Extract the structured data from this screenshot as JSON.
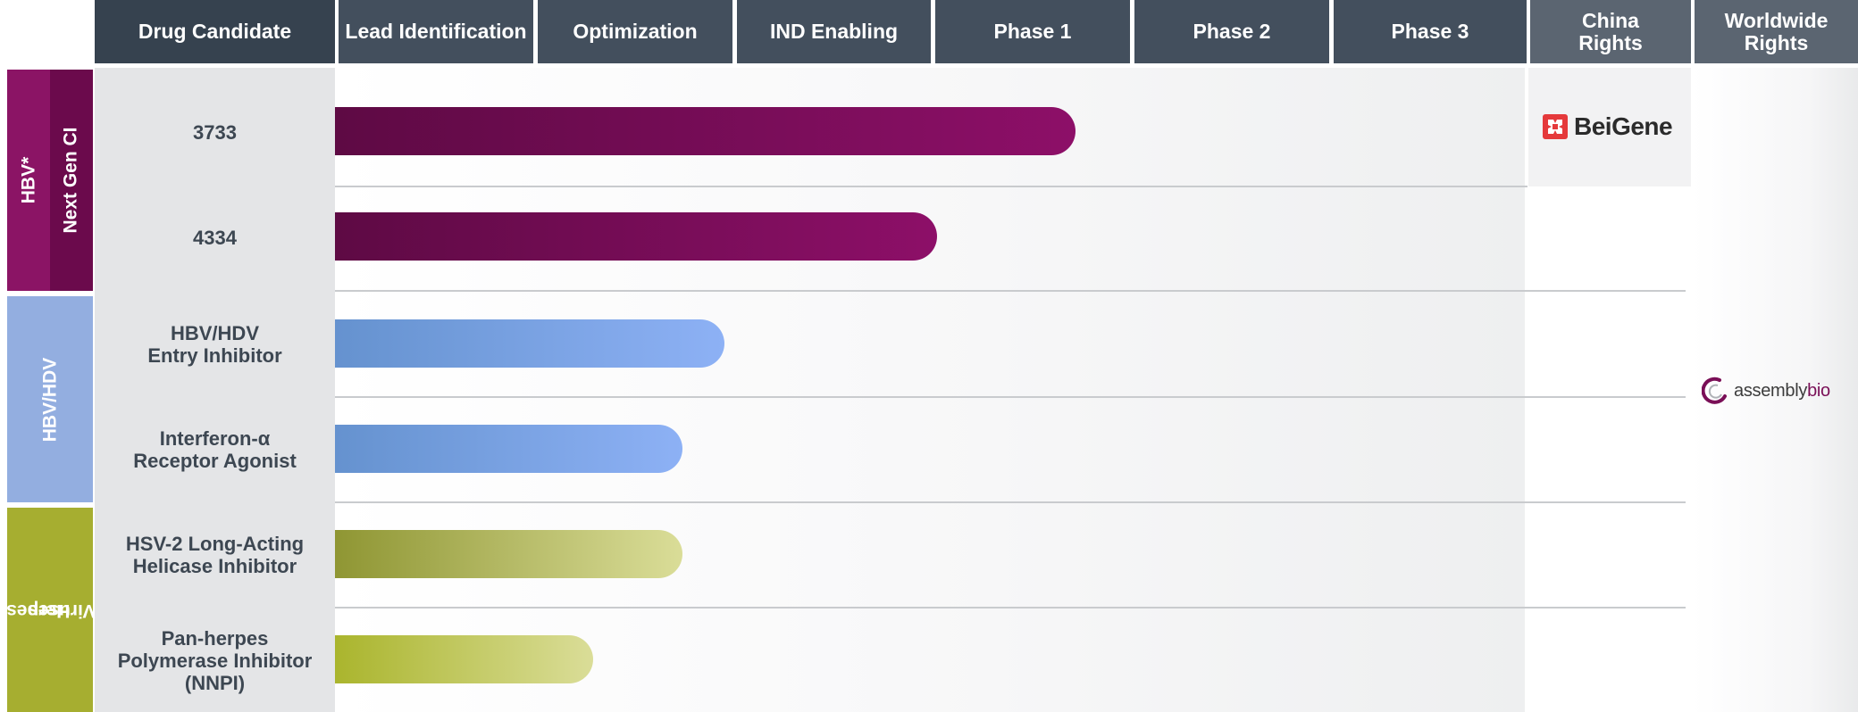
{
  "chart_data": {
    "type": "bar",
    "orientation": "horizontal",
    "stages": [
      "Lead Identification",
      "Optimization",
      "IND Enabling",
      "Phase 1",
      "Phase 2",
      "Phase 3"
    ],
    "headers": {
      "candidate": "Drug Candidate",
      "stages": [
        "Lead Identification",
        "Optimization",
        "IND Enabling",
        "Phase 1",
        "Phase 2",
        "Phase 3"
      ],
      "china_rights": [
        "China",
        "Rights"
      ],
      "worldwide_rights": [
        "Worldwide",
        "Rights"
      ]
    },
    "categories": [
      {
        "label": "HBV*",
        "color": "#8b1465"
      },
      {
        "label": "Next Gen CI",
        "color": "#6b0a4c"
      },
      {
        "label": "HBV/HDV",
        "color": "#93aee0"
      },
      {
        "label": "Herpes",
        "label2": "Viruses",
        "color": "#a6ae30"
      }
    ],
    "candidates": [
      {
        "lines": [
          "3733"
        ],
        "progress": 3.73,
        "start_color": "#5e0a44",
        "end_color": "#8d0f68"
      },
      {
        "lines": [
          "4334"
        ],
        "progress": 3.03,
        "start_color": "#5e0a44",
        "end_color": "#8d0f68"
      },
      {
        "lines": [
          "HBV/HDV",
          "Entry Inhibitor"
        ],
        "progress": 1.96,
        "start_color": "#6592cf",
        "end_color": "#8db1f5"
      },
      {
        "lines": [
          "Interferon-α",
          "Receptor Agonist"
        ],
        "progress": 1.75,
        "start_color": "#6592cf",
        "end_color": "#8db1f5"
      },
      {
        "lines": [
          "HSV-2 Long-Acting",
          "Helicase Inhibitor"
        ],
        "progress": 1.75,
        "start_color": "#8f9633",
        "end_color": "#dadd98"
      },
      {
        "lines": [
          "Pan-herpes",
          "Polymerase Inhibitor",
          "(NNPI)"
        ],
        "progress": 1.3,
        "start_color": "#aab52d",
        "end_color": "#dadd98"
      }
    ],
    "rights": {
      "china": "BeiGene",
      "worldwide_prefix": "assembly",
      "worldwide_suffix": "bio"
    },
    "colors": {
      "header_dark": "#36424f",
      "header_rights": "#5b6571",
      "candidate_text": "#3d4752"
    }
  }
}
